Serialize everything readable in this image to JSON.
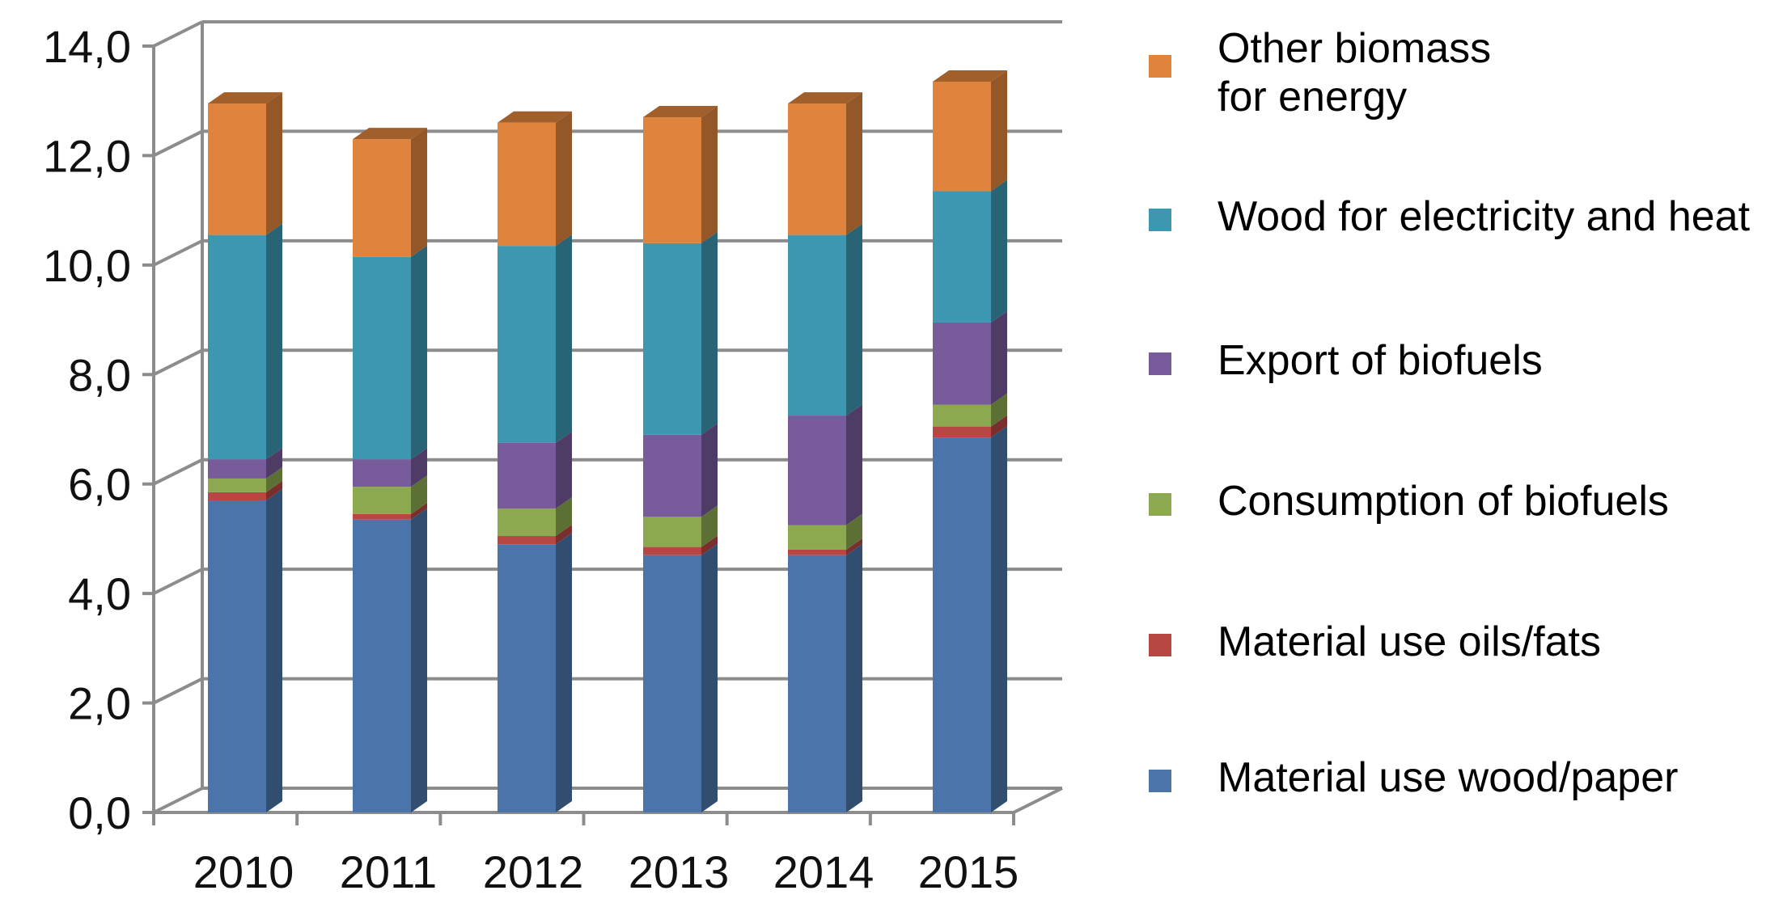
{
  "chart_data": {
    "type": "bar",
    "stacked": true,
    "three_d": true,
    "grid": true,
    "legend_position": "right",
    "title": "",
    "xlabel": "",
    "ylabel": "",
    "ylim": [
      0,
      14
    ],
    "y_ticks": [
      "0,0",
      "2,0",
      "4,0",
      "6,0",
      "8,0",
      "10,0",
      "12,0",
      "14,0"
    ],
    "categories": [
      "2010",
      "2011",
      "2012",
      "2013",
      "2014",
      "2015"
    ],
    "series": [
      {
        "name": "Material use wood/paper",
        "color": "#4A74AA",
        "values": [
          5.7,
          5.35,
          4.9,
          4.7,
          4.7,
          6.85
        ]
      },
      {
        "name": "Material use oils/fats",
        "color": "#B84744",
        "values": [
          0.15,
          0.1,
          0.15,
          0.15,
          0.1,
          0.2
        ]
      },
      {
        "name": "Consumption of biofuels",
        "color": "#8CA950",
        "values": [
          0.25,
          0.5,
          0.5,
          0.55,
          0.45,
          0.4
        ]
      },
      {
        "name": "Export of biofuels",
        "color": "#785B9A",
        "values": [
          0.35,
          0.5,
          1.2,
          1.5,
          2.0,
          1.5
        ]
      },
      {
        "name": "Wood for electricity and heat",
        "color": "#3D97B1",
        "values": [
          4.1,
          3.7,
          3.6,
          3.5,
          3.3,
          2.4
        ]
      },
      {
        "name": "Other biomass\nfor energy",
        "color": "#E0843D",
        "values": [
          2.4,
          2.15,
          2.25,
          2.3,
          2.4,
          2.0
        ]
      }
    ]
  },
  "legend_order": [
    5,
    4,
    3,
    2,
    1,
    0
  ]
}
